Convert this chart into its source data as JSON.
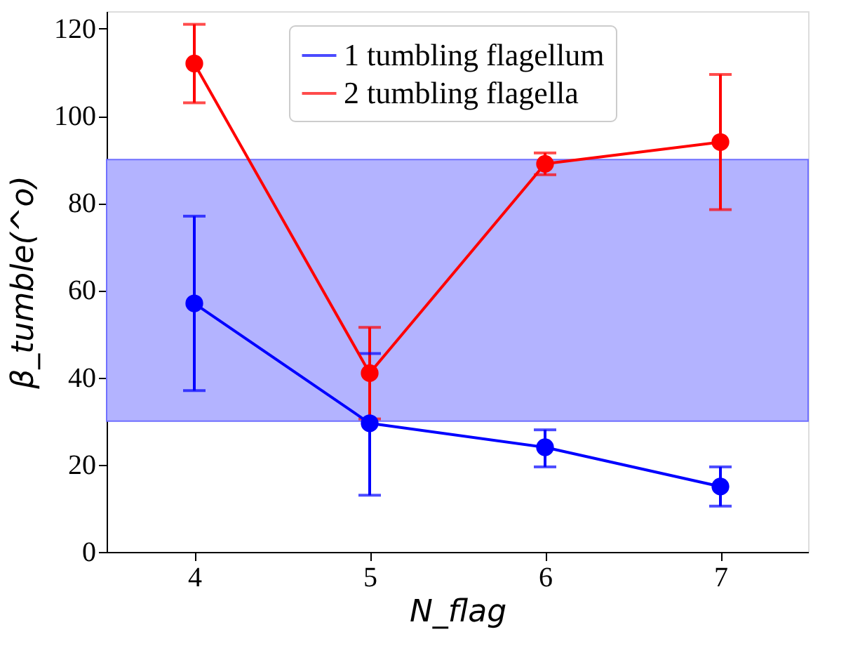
{
  "chart_data": {
    "type": "line",
    "xlabel": "N_flag",
    "ylabel": "β_tumble(^o)",
    "x": [
      4,
      5,
      6,
      7
    ],
    "series": [
      {
        "name": "1 tumbling flagellum",
        "color": "#0000ff",
        "values": [
          57,
          29.5,
          24,
          15
        ],
        "errors": [
          [
            37,
            77
          ],
          [
            13,
            45.5
          ],
          [
            19.5,
            28
          ],
          [
            10.5,
            19.5
          ]
        ]
      },
      {
        "name": "2 tumbling flagella",
        "color": "#ff0000",
        "values": [
          112,
          41,
          89,
          94
        ],
        "errors": [
          [
            103,
            121
          ],
          [
            30.5,
            51.5
          ],
          [
            86.5,
            91.5
          ],
          [
            78.5,
            109.5
          ]
        ]
      }
    ],
    "bands": [
      {
        "axis": "y",
        "from": 30,
        "to": 90,
        "color": "#b3b3ff"
      }
    ],
    "xlim": [
      3.5,
      7.5
    ],
    "xticks": [
      4,
      5,
      6,
      7
    ],
    "ylim": [
      0,
      124
    ],
    "yticks": [
      0,
      20,
      40,
      60,
      80,
      100,
      120
    ],
    "marker": "circle",
    "line_style": "solid",
    "grid": false,
    "legend": "top"
  }
}
